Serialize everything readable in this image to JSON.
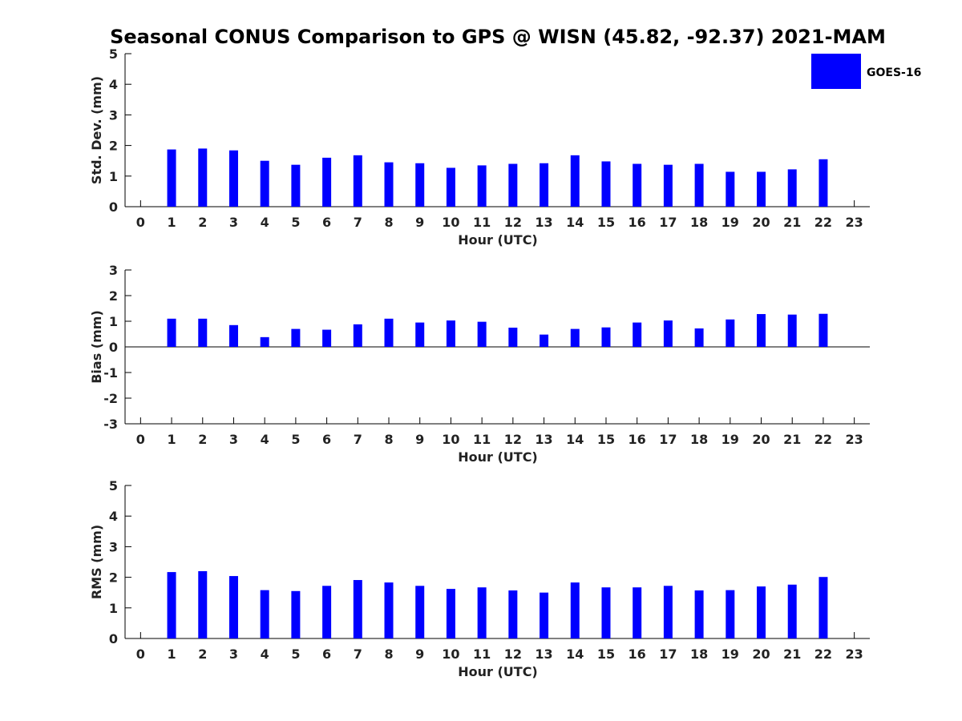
{
  "figure": {
    "title": "Seasonal CONUS Comparison to GPS @ WISN (45.82, -92.37) 2021-MAM"
  },
  "legend": {
    "label": "GOES-16",
    "color": "#0000ff",
    "placement": "top-right"
  },
  "chart_data": [
    {
      "type": "bar",
      "name": "std-dev",
      "xlabel": "Hour (UTC)",
      "ylabel": "Std. Dev. (mm)",
      "xlim": [
        -0.5,
        23.5
      ],
      "ylim": [
        0,
        5
      ],
      "yticks": [
        0,
        1,
        2,
        3,
        4,
        5
      ],
      "categories": [
        "0",
        "1",
        "2",
        "3",
        "4",
        "5",
        "6",
        "7",
        "8",
        "9",
        "10",
        "11",
        "12",
        "13",
        "14",
        "15",
        "16",
        "17",
        "18",
        "19",
        "20",
        "21",
        "22",
        "23"
      ],
      "series": [
        {
          "name": "GOES-16",
          "values": [
            null,
            1.87,
            1.9,
            1.84,
            1.5,
            1.37,
            1.6,
            1.68,
            1.45,
            1.42,
            1.27,
            1.35,
            1.4,
            1.42,
            1.68,
            1.48,
            1.4,
            1.37,
            1.4,
            1.14,
            1.14,
            1.22,
            1.55,
            null
          ]
        }
      ],
      "grid": false
    },
    {
      "type": "bar",
      "name": "bias",
      "xlabel": "Hour (UTC)",
      "ylabel": "Bias (mm)",
      "xlim": [
        -0.5,
        23.5
      ],
      "ylim": [
        -3,
        3
      ],
      "yticks": [
        -3,
        -2,
        -1,
        0,
        1,
        2,
        3
      ],
      "categories": [
        "0",
        "1",
        "2",
        "3",
        "4",
        "5",
        "6",
        "7",
        "8",
        "9",
        "10",
        "11",
        "12",
        "13",
        "14",
        "15",
        "16",
        "17",
        "18",
        "19",
        "20",
        "21",
        "22",
        "23"
      ],
      "series": [
        {
          "name": "GOES-16",
          "values": [
            null,
            1.1,
            1.1,
            0.85,
            0.38,
            0.7,
            0.67,
            0.88,
            1.1,
            0.95,
            1.03,
            0.98,
            0.75,
            0.48,
            0.7,
            0.76,
            0.95,
            1.03,
            0.72,
            1.07,
            1.28,
            1.26,
            1.29,
            null
          ]
        }
      ],
      "grid": false
    },
    {
      "type": "bar",
      "name": "rms",
      "xlabel": "Hour (UTC)",
      "ylabel": "RMS (mm)",
      "xlim": [
        -0.5,
        23.5
      ],
      "ylim": [
        0,
        5
      ],
      "yticks": [
        0,
        1,
        2,
        3,
        4,
        5
      ],
      "categories": [
        "0",
        "1",
        "2",
        "3",
        "4",
        "5",
        "6",
        "7",
        "8",
        "9",
        "10",
        "11",
        "12",
        "13",
        "14",
        "15",
        "16",
        "17",
        "18",
        "19",
        "20",
        "21",
        "22",
        "23"
      ],
      "series": [
        {
          "name": "GOES-16",
          "values": [
            null,
            2.17,
            2.2,
            2.04,
            1.58,
            1.55,
            1.72,
            1.91,
            1.83,
            1.72,
            1.62,
            1.67,
            1.57,
            1.5,
            1.83,
            1.67,
            1.67,
            1.72,
            1.57,
            1.58,
            1.7,
            1.76,
            2.01,
            null
          ]
        }
      ],
      "grid": false
    }
  ]
}
